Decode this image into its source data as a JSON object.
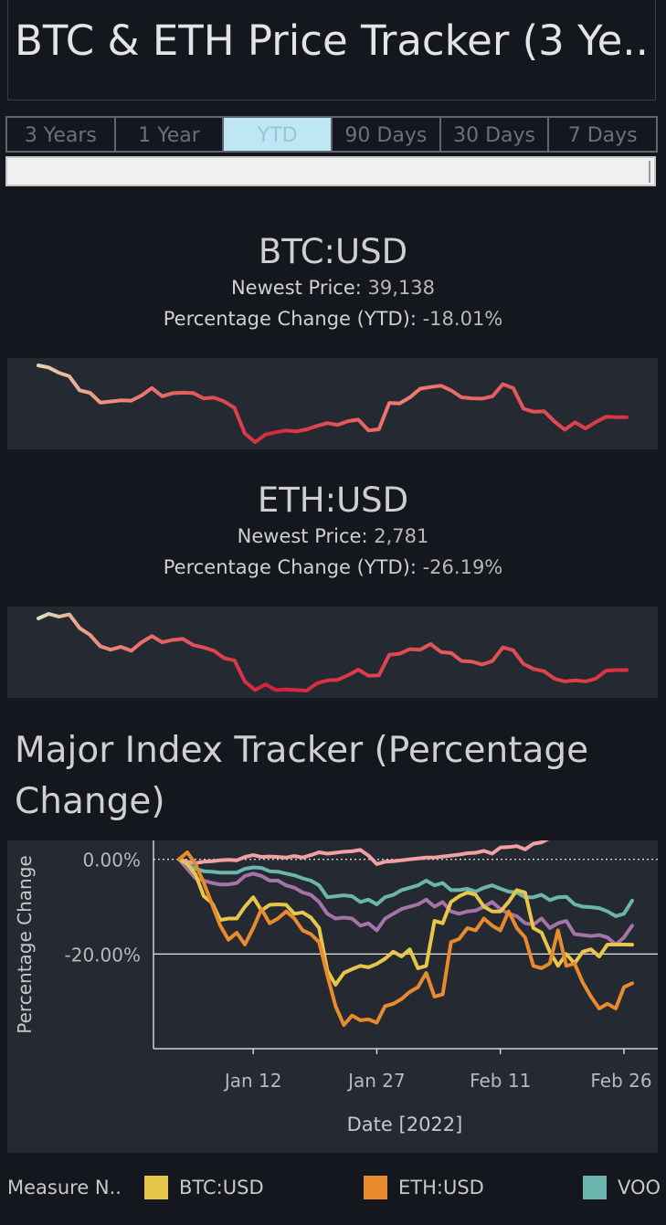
{
  "title": "BTC & ETH Price Tracker (3 Ye..",
  "tabs": [
    {
      "label": "3 Years",
      "active": false
    },
    {
      "label": "1 Year",
      "active": false
    },
    {
      "label": "YTD",
      "active": true
    },
    {
      "label": "90 Days",
      "active": false
    },
    {
      "label": "30 Days",
      "active": false
    },
    {
      "label": "7 Days",
      "active": false
    }
  ],
  "btc": {
    "pair": "BTC:USD",
    "price_label": "Newest Price:",
    "price": "39,138",
    "change_label": "Percentage Change (YTD):",
    "change": "-18.01%"
  },
  "eth": {
    "pair": "ETH:USD",
    "price_label": "Newest Price:",
    "price": "2,781",
    "change_label": "Percentage Change (YTD):",
    "change": "-26.19%"
  },
  "index_title": "Major Index Tracker (Percentage Change)",
  "legend": {
    "title": "Measure N..",
    "items": [
      {
        "label": "BTC:USD",
        "color": "#e8c64a"
      },
      {
        "label": "ETH:USD",
        "color": "#e88a2e"
      },
      {
        "label": "VOO",
        "color": "#6cb5ae"
      }
    ]
  },
  "chart_data": [
    {
      "type": "line",
      "title": "BTC:USD",
      "x": [
        "2022-01-01",
        "2022-01-02",
        "2022-01-03",
        "2022-01-04",
        "2022-01-05",
        "2022-01-06",
        "2022-01-07",
        "2022-01-08",
        "2022-01-09",
        "2022-01-10",
        "2022-01-11",
        "2022-01-12",
        "2022-01-13",
        "2022-01-14",
        "2022-01-15",
        "2022-01-16",
        "2022-01-17",
        "2022-01-18",
        "2022-01-19",
        "2022-01-20",
        "2022-01-21",
        "2022-01-22",
        "2022-01-23",
        "2022-01-24",
        "2022-01-25",
        "2022-01-26",
        "2022-01-27",
        "2022-01-28",
        "2022-01-29",
        "2022-01-30",
        "2022-01-31",
        "2022-02-01",
        "2022-02-02",
        "2022-02-03",
        "2022-02-04",
        "2022-02-05",
        "2022-02-06",
        "2022-02-07",
        "2022-02-08",
        "2022-02-09",
        "2022-02-10",
        "2022-02-11",
        "2022-02-12",
        "2022-02-13",
        "2022-02-14",
        "2022-02-15",
        "2022-02-16",
        "2022-02-17",
        "2022-02-18",
        "2022-02-19",
        "2022-02-20",
        "2022-02-21",
        "2022-02-22",
        "2022-02-23",
        "2022-02-24",
        "2022-02-25",
        "2022-02-26",
        "2022-02-27"
      ],
      "values": [
        47686,
        47345,
        46459,
        45897,
        43569,
        43160,
        41558,
        41734,
        41912,
        41864,
        42736,
        43949,
        42592,
        43100,
        43177,
        43114,
        42250,
        42375,
        41744,
        40680,
        36457,
        35030,
        36276,
        36654,
        36954,
        36809,
        37138,
        37716,
        38166,
        37882,
        38483,
        38743,
        36944,
        37149,
        41500,
        41412,
        42412,
        43840,
        44118,
        44338,
        43565,
        42407,
        42244,
        42197,
        42586,
        44575,
        43961,
        40538,
        40030,
        40122,
        38431,
        37075,
        38285,
        37296,
        38332,
        39214,
        39138,
        39138
      ],
      "series": [
        {
          "name": "BTC:USD"
        }
      ]
    },
    {
      "type": "line",
      "title": "ETH:USD",
      "x": [
        "2022-01-01",
        "2022-01-02",
        "2022-01-03",
        "2022-01-04",
        "2022-01-05",
        "2022-01-06",
        "2022-01-07",
        "2022-01-08",
        "2022-01-09",
        "2022-01-10",
        "2022-01-11",
        "2022-01-12",
        "2022-01-13",
        "2022-01-14",
        "2022-01-15",
        "2022-01-16",
        "2022-01-17",
        "2022-01-18",
        "2022-01-19",
        "2022-01-20",
        "2022-01-21",
        "2022-01-22",
        "2022-01-23",
        "2022-01-24",
        "2022-01-25",
        "2022-01-26",
        "2022-01-27",
        "2022-01-28",
        "2022-01-29",
        "2022-01-30",
        "2022-01-31",
        "2022-02-01",
        "2022-02-02",
        "2022-02-03",
        "2022-02-04",
        "2022-02-05",
        "2022-02-06",
        "2022-02-07",
        "2022-02-08",
        "2022-02-09",
        "2022-02-10",
        "2022-02-11",
        "2022-02-12",
        "2022-02-13",
        "2022-02-14",
        "2022-02-15",
        "2022-02-16",
        "2022-02-17",
        "2022-02-18",
        "2022-02-19",
        "2022-02-20",
        "2022-02-21",
        "2022-02-22",
        "2022-02-23",
        "2022-02-24",
        "2022-02-25",
        "2022-02-26",
        "2022-02-27"
      ],
      "values": [
        3690,
        3770,
        3720,
        3760,
        3520,
        3400,
        3200,
        3140,
        3190,
        3120,
        3270,
        3380,
        3270,
        3310,
        3330,
        3220,
        3180,
        3120,
        2990,
        2950,
        2580,
        2430,
        2530,
        2430,
        2440,
        2430,
        2420,
        2550,
        2600,
        2610,
        2690,
        2790,
        2680,
        2690,
        3050,
        3070,
        3150,
        3140,
        3240,
        3100,
        3080,
        2940,
        2930,
        2880,
        2940,
        3180,
        3130,
        2890,
        2800,
        2760,
        2630,
        2580,
        2600,
        2580,
        2630,
        2770,
        2781,
        2781
      ],
      "series": [
        {
          "name": "ETH:USD"
        }
      ]
    },
    {
      "type": "line",
      "title": "",
      "xlabel": "Date [2022]",
      "ylabel": "Percentage Change",
      "x_ticks": [
        "Jan 12",
        "Jan 27",
        "Feb 11",
        "Feb 26"
      ],
      "y_ticks": [
        "0.00%",
        "-20.00%"
      ],
      "ylim": [
        -40,
        4
      ],
      "x": [
        "2022-01-03",
        "2022-01-04",
        "2022-01-05",
        "2022-01-06",
        "2022-01-07",
        "2022-01-08",
        "2022-01-09",
        "2022-01-10",
        "2022-01-11",
        "2022-01-12",
        "2022-01-13",
        "2022-01-14",
        "2022-01-15",
        "2022-01-16",
        "2022-01-17",
        "2022-01-18",
        "2022-01-19",
        "2022-01-20",
        "2022-01-21",
        "2022-01-22",
        "2022-01-23",
        "2022-01-24",
        "2022-01-25",
        "2022-01-26",
        "2022-01-27",
        "2022-01-28",
        "2022-01-29",
        "2022-01-30",
        "2022-01-31",
        "2022-02-01",
        "2022-02-02",
        "2022-02-03",
        "2022-02-04",
        "2022-02-05",
        "2022-02-06",
        "2022-02-07",
        "2022-02-08",
        "2022-02-09",
        "2022-02-10",
        "2022-02-11",
        "2022-02-12",
        "2022-02-13",
        "2022-02-14",
        "2022-02-15",
        "2022-02-16",
        "2022-02-17",
        "2022-02-18",
        "2022-02-19",
        "2022-02-20",
        "2022-02-21",
        "2022-02-22",
        "2022-02-23",
        "2022-02-24",
        "2022-02-25",
        "2022-02-26",
        "2022-02-27"
      ],
      "series": [
        {
          "name": "",
          "color": "#f2a0a6",
          "values": [
            0,
            -0.5,
            -0.8,
            -0.5,
            -0.4,
            -0.2,
            -0.1,
            -0.2,
            0.5,
            0.9,
            0.5,
            0.6,
            0.5,
            0.4,
            0.7,
            0.4,
            0.9,
            1.5,
            1.2,
            1.4,
            1.6,
            1.7,
            2.0,
            0.8,
            -1.0,
            -0.5,
            -0.4,
            -0.2,
            0,
            0.2,
            0.4,
            0.4,
            0.6,
            0.8,
            1.0,
            1.3,
            1.4,
            1.8,
            1.2,
            2.5,
            2.6,
            2.8,
            2.1,
            3.3,
            3.6,
            4.5,
            5.0,
            5.0,
            5.1,
            5.2,
            5.2,
            5.2,
            5.2,
            5.3,
            5.0,
            4.8
          ]
        },
        {
          "name": "VOO",
          "color": "#6cb5ae",
          "values": [
            0,
            -1.0,
            -2.0,
            -2.5,
            -2.6,
            -2.8,
            -2.8,
            -2.8,
            -2.0,
            -1.7,
            -1.8,
            -2.5,
            -2.6,
            -3.0,
            -3.4,
            -4.0,
            -4.5,
            -5.5,
            -8.0,
            -7.8,
            -7.6,
            -7.8,
            -9.0,
            -8.5,
            -9.5,
            -8.0,
            -7.5,
            -6.5,
            -6.0,
            -5.5,
            -4.5,
            -5.5,
            -5.0,
            -6.5,
            -6.5,
            -6.2,
            -6.8,
            -6.0,
            -5.5,
            -6.2,
            -6.8,
            -7.0,
            -8.0,
            -8.0,
            -7.5,
            -8.6,
            -8.0,
            -7.9,
            -9.5,
            -10.0,
            -10.1,
            -10.3,
            -11.0,
            -12.0,
            -11.5,
            -8.7
          ]
        },
        {
          "name": "",
          "color": "#a673a8",
          "values": [
            0,
            -2.0,
            -4.0,
            -4.5,
            -5.0,
            -5.3,
            -5.3,
            -5.0,
            -3.5,
            -3.0,
            -3.5,
            -4.5,
            -4.5,
            -5.5,
            -6.0,
            -7.0,
            -7.5,
            -9.0,
            -11.5,
            -12.5,
            -12.3,
            -12.5,
            -14.0,
            -13.5,
            -15.0,
            -12.5,
            -11.5,
            -10.5,
            -10.0,
            -9.5,
            -8.5,
            -10.0,
            -9.0,
            -11.0,
            -11.5,
            -11.0,
            -10.8,
            -10.0,
            -9.0,
            -10.5,
            -11.5,
            -12.0,
            -13.5,
            -13.8,
            -12.5,
            -14.5,
            -13.5,
            -13.0,
            -15.8,
            -16.0,
            -16.2,
            -16.0,
            -16.5,
            -18.0,
            -16.5,
            -14.0
          ]
        },
        {
          "name": "BTC:USD",
          "color": "#e8c64a",
          "values": [
            0,
            -1.0,
            -3.2,
            -7.8,
            -9.2,
            -12.8,
            -12.5,
            -12.5,
            -10.0,
            -8.0,
            -10.8,
            -9.6,
            -9.5,
            -9.6,
            -11.5,
            -11.2,
            -12.3,
            -14.5,
            -23.5,
            -26.5,
            -24.0,
            -23.2,
            -22.5,
            -22.8,
            -22.1,
            -21.0,
            -19.5,
            -20.5,
            -19.0,
            -23.0,
            -22.5,
            -13.0,
            -13.5,
            -9.0,
            -7.8,
            -7.0,
            -7.5,
            -10.0,
            -11.0,
            -11.0,
            -9.0,
            -6.5,
            -7.0,
            -14.5,
            -15.5,
            -19.5,
            -22.5,
            -20.0,
            -22.0,
            -19.5,
            -19.0,
            -20.5,
            -18.0,
            -18.0,
            -18.0,
            -18.01
          ]
        },
        {
          "name": "ETH:USD",
          "color": "#e88a2e",
          "values": [
            0,
            1.5,
            -1.0,
            -5.0,
            -9.5,
            -14.0,
            -17.0,
            -15.5,
            -18.0,
            -14.5,
            -10.5,
            -13.5,
            -12.5,
            -11.0,
            -12.5,
            -15.0,
            -15.8,
            -17.5,
            -24.5,
            -31.0,
            -35.0,
            -33.0,
            -34.0,
            -33.8,
            -34.5,
            -31.0,
            -30.5,
            -29.5,
            -28.0,
            -27.0,
            -24.0,
            -29.0,
            -28.5,
            -17.5,
            -16.8,
            -14.5,
            -15.0,
            -12.5,
            -14.0,
            -15.0,
            -11.0,
            -14.5,
            -16.5,
            -22.5,
            -23.0,
            -22.0,
            -15.0,
            -22.5,
            -22.0,
            -26.0,
            -29.0,
            -31.5,
            -30.5,
            -31.5,
            -27.0,
            -26.19
          ]
        }
      ]
    }
  ]
}
